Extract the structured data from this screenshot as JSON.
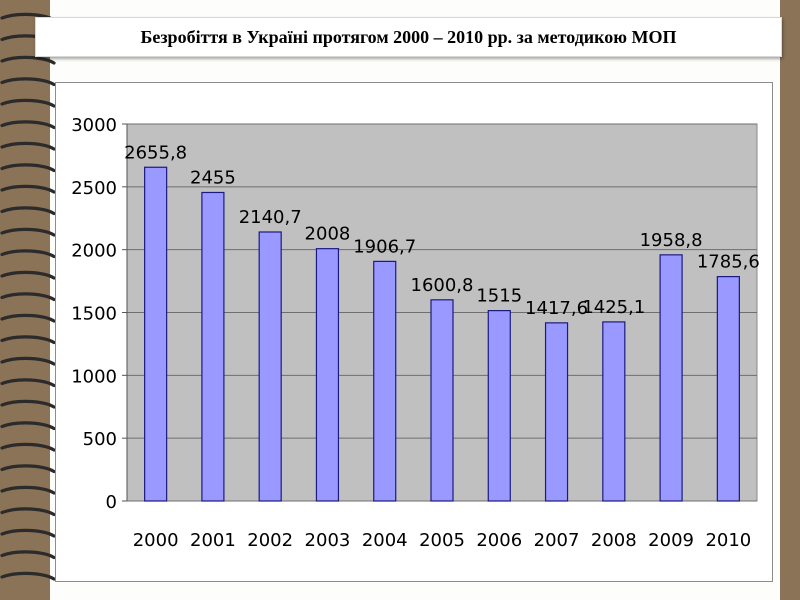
{
  "slide": {
    "title": "Безробіття в Україні протягом 2000 – 2010 рр. за методикою МОП"
  },
  "colors": {
    "background": "#8b7358",
    "plot_area": "#c0c0c0",
    "bar_fill": "#9999ff",
    "bar_stroke": "#1a1a80"
  },
  "chart_data": {
    "type": "bar",
    "title": "",
    "xlabel": "",
    "ylabel": "",
    "categories": [
      "2000",
      "2001",
      "2002",
      "2003",
      "2004",
      "2005",
      "2006",
      "2007",
      "2008",
      "2009",
      "2010"
    ],
    "values": [
      2655.8,
      2455,
      2140.7,
      2008,
      1906.7,
      1600.8,
      1515,
      1417.6,
      1425.1,
      1958.8,
      1785.6
    ],
    "data_labels": [
      "2655,8",
      "2455",
      "2140,7",
      "2008",
      "1906,7",
      "1600,8",
      "1515",
      "1417,6",
      "1425,1",
      "1958,8",
      "1785,6"
    ],
    "ylim": [
      0,
      3000
    ],
    "yticks": [
      0,
      500,
      1000,
      1500,
      2000,
      2500,
      3000
    ],
    "grid": true,
    "legend": "none"
  }
}
